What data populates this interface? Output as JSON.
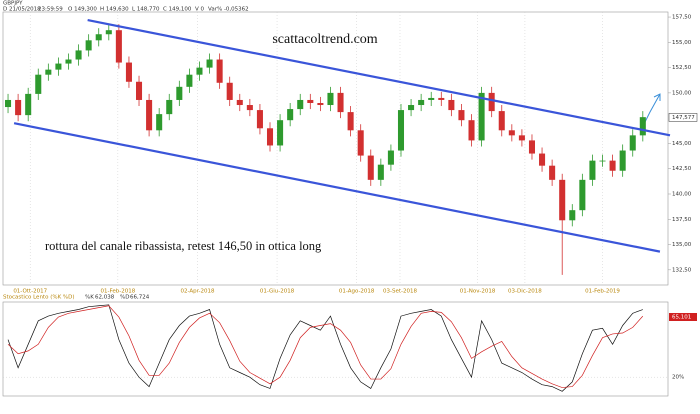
{
  "header": {
    "symbol": "GBPJPY",
    "info": [
      "D 21/05/2018",
      "23:59:59",
      "O 149,300",
      "H 149,630",
      "L 148,770",
      "C 149,100",
      "V 0",
      "Var% -0,05362"
    ]
  },
  "chart_data": [
    {
      "type": "candlestick",
      "site": "scattacoltrend.com",
      "annotation": "rottura del canale ribassista, retest 146,50 in ottica long",
      "up_color": "#2e9a2e",
      "down_color": "#d23030",
      "channel_color": "#3a55d9",
      "xlim": [
        0,
        66
      ],
      "xticks": [
        {
          "value": 2.7,
          "label": "01-Ott-2017"
        },
        {
          "value": 11.4,
          "label": "01-Feb-2018"
        },
        {
          "value": 19.3,
          "label": "02-Apr-2018"
        },
        {
          "value": 27.2,
          "label": "01-Giu-2018"
        },
        {
          "value": 35.1,
          "label": "01-Ago-2018"
        },
        {
          "value": 39.4,
          "label": "03-Set-2018"
        },
        {
          "value": 47.1,
          "label": "01-Nov-2018"
        },
        {
          "value": 51.8,
          "label": "03-Dic-2018"
        },
        {
          "value": 59.5,
          "label": "01-Feb-2019"
        }
      ],
      "ylim": [
        131,
        158
      ],
      "yticks": [
        {
          "value": 132.5,
          "label": "132,50"
        },
        {
          "value": 135,
          "label": "135,00"
        },
        {
          "value": 137.5,
          "label": "137,50"
        },
        {
          "value": 140,
          "label": "140,00"
        },
        {
          "value": 142.5,
          "label": "142,50"
        },
        {
          "value": 145,
          "label": "145,00"
        },
        {
          "value": 150,
          "label": "150,00"
        },
        {
          "value": 152.5,
          "label": "152,50"
        },
        {
          "value": 155,
          "label": "155,00"
        },
        {
          "value": 157.5,
          "label": "157,50"
        }
      ],
      "last_price": {
        "value": 147.577,
        "label": "147,577"
      },
      "open": [
        148.6,
        149.3,
        147.8,
        149.9,
        151.8,
        152.3,
        152.9,
        153.3,
        154.2,
        155.2,
        155.8,
        156.2,
        153.0,
        151.1,
        149.3,
        146.3,
        147.9,
        149.3,
        150.6,
        151.8,
        152.5,
        153.3,
        151.0,
        149.3,
        148.8,
        148.3,
        146.5,
        144.8,
        147.3,
        148.4,
        149.3,
        149.0,
        148.8,
        150.0,
        148.1,
        146.3,
        143.8,
        141.4,
        142.9,
        144.3,
        148.3,
        148.8,
        149.3,
        149.5,
        149.3,
        148.3,
        147.3,
        145.3,
        150.0,
        148.2,
        146.3,
        145.8,
        145.3,
        144.0,
        142.8,
        141.4,
        137.4,
        138.4,
        141.4,
        143.3,
        143.3,
        142.3,
        144.3,
        145.8
      ],
      "high": [
        149.9,
        149.9,
        150.5,
        152.4,
        152.9,
        153.5,
        153.9,
        154.8,
        155.8,
        156.4,
        156.8,
        156.8,
        153.6,
        151.7,
        149.9,
        148.5,
        149.9,
        151.2,
        152.4,
        153.1,
        153.9,
        153.9,
        151.6,
        149.9,
        149.4,
        148.9,
        147.1,
        147.9,
        149.0,
        149.9,
        149.9,
        149.6,
        150.6,
        150.6,
        148.7,
        146.9,
        144.4,
        143.5,
        144.9,
        148.9,
        149.4,
        149.9,
        150.1,
        150.1,
        149.9,
        148.9,
        147.9,
        150.6,
        150.6,
        148.8,
        146.9,
        146.4,
        145.9,
        144.6,
        143.4,
        142.0,
        139.0,
        142.0,
        143.9,
        143.9,
        143.9,
        144.9,
        146.4,
        148.2
      ],
      "low": [
        148.0,
        147.2,
        147.2,
        149.3,
        151.2,
        151.7,
        152.3,
        152.7,
        153.6,
        154.6,
        155.2,
        152.4,
        150.5,
        148.7,
        145.7,
        145.7,
        147.3,
        148.7,
        150.0,
        151.2,
        151.9,
        150.4,
        148.7,
        148.2,
        147.7,
        145.9,
        144.2,
        144.2,
        146.7,
        147.8,
        148.4,
        148.2,
        148.2,
        147.5,
        145.7,
        143.2,
        140.8,
        140.8,
        142.3,
        143.7,
        147.7,
        148.2,
        148.7,
        148.7,
        147.7,
        146.7,
        144.7,
        144.7,
        147.6,
        145.7,
        145.2,
        144.7,
        143.4,
        142.2,
        140.8,
        132.0,
        136.8,
        137.8,
        140.8,
        142.7,
        141.7,
        141.7,
        143.7,
        145.2
      ],
      "close": [
        149.3,
        147.8,
        149.9,
        151.8,
        152.3,
        152.9,
        153.3,
        154.2,
        155.2,
        155.8,
        156.2,
        153.0,
        151.1,
        149.3,
        146.3,
        147.9,
        149.3,
        150.6,
        151.8,
        152.5,
        153.3,
        151.0,
        149.3,
        148.8,
        148.3,
        146.5,
        144.8,
        147.3,
        148.4,
        149.3,
        149.0,
        148.8,
        150.0,
        148.1,
        146.3,
        143.8,
        141.4,
        142.9,
        144.3,
        148.3,
        148.8,
        149.3,
        149.5,
        149.3,
        148.3,
        147.3,
        145.3,
        150.0,
        148.2,
        146.3,
        145.8,
        145.3,
        144.0,
        142.8,
        141.4,
        137.4,
        138.4,
        141.4,
        143.3,
        143.3,
        142.3,
        144.3,
        145.8,
        147.6
      ],
      "trendlines": [
        {
          "x": [
            8.4,
            66.2
          ],
          "y": [
            157.2,
            145.8
          ]
        },
        {
          "x": [
            1.1,
            65.2
          ],
          "y": [
            147.0,
            134.3
          ]
        }
      ]
    },
    {
      "type": "line",
      "title": "Stocastico Lento (%K %D)",
      "k_label": "%K",
      "k_value": "62,038",
      "d_label": "%D",
      "d_value": "66,724",
      "box_value": "65,101",
      "xlim": [
        0,
        66
      ],
      "ylim": [
        0,
        100
      ],
      "yticks": [
        {
          "value": 20,
          "label": "20%"
        }
      ],
      "series": [
        {
          "name": "%K",
          "color": "#111111",
          "values": [
            60,
            30,
            55,
            80,
            85,
            88,
            90,
            92,
            95,
            96,
            97,
            60,
            35,
            20,
            10,
            35,
            60,
            75,
            85,
            88,
            92,
            55,
            30,
            25,
            20,
            12,
            8,
            40,
            65,
            80,
            75,
            70,
            85,
            55,
            30,
            15,
            8,
            30,
            50,
            85,
            88,
            90,
            92,
            85,
            60,
            40,
            20,
            80,
            60,
            35,
            30,
            25,
            18,
            12,
            10,
            5,
            15,
            45,
            70,
            72,
            55,
            75,
            88,
            92
          ]
        },
        {
          "name": "%D",
          "color": "#d02020",
          "values": [
            55,
            45,
            48,
            55,
            73,
            84,
            88,
            90,
            92,
            94,
            96,
            84,
            64,
            38,
            22,
            22,
            35,
            57,
            73,
            83,
            88,
            78,
            59,
            37,
            25,
            19,
            13,
            20,
            38,
            62,
            73,
            75,
            77,
            70,
            57,
            33,
            18,
            18,
            29,
            55,
            74,
            88,
            90,
            89,
            79,
            62,
            40,
            47,
            53,
            58,
            42,
            30,
            24,
            18,
            13,
            9,
            10,
            22,
            43,
            62,
            66,
            67,
            73,
            85
          ]
        }
      ]
    }
  ]
}
